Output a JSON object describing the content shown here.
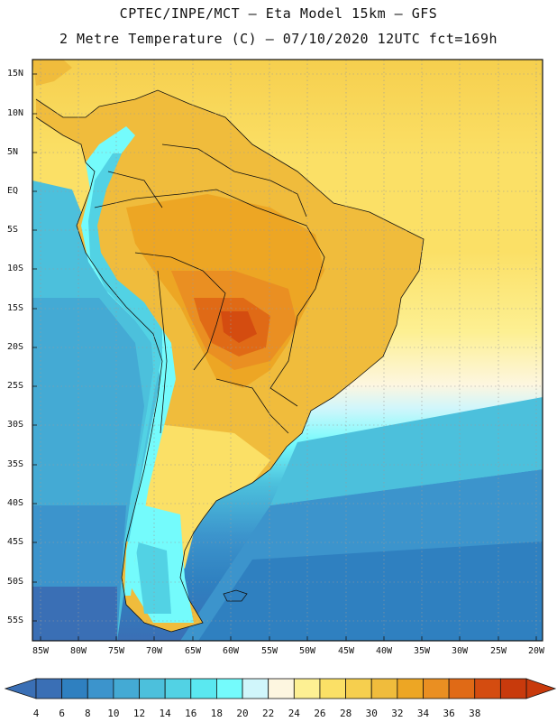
{
  "title_line1": "CPTEC/INPE/MCT –  Eta Model 15km – GFS",
  "title_line2": "2 Metre Temperature (C) – 07/10/2020 12UTC fct=169h",
  "lat_labels": [
    "15N",
    "10N",
    "5N",
    "EQ",
    "5S",
    "10S",
    "15S",
    "20S",
    "25S",
    "30S",
    "35S",
    "40S",
    "45S",
    "50S",
    "55S"
  ],
  "lon_labels": [
    "85W",
    "80W",
    "75W",
    "70W",
    "65W",
    "60W",
    "55W",
    "50W",
    "45W",
    "40W",
    "35W",
    "30W",
    "25W",
    "20W"
  ],
  "colorbar": {
    "labels": [
      "4",
      "6",
      "8",
      "10",
      "12",
      "14",
      "16",
      "18",
      "20",
      "22",
      "24",
      "26",
      "28",
      "30",
      "32",
      "34",
      "36",
      "38"
    ],
    "colors": [
      "#3a6fb5",
      "#2f80c0",
      "#3c94cc",
      "#44aad4",
      "#4cc0dc",
      "#52d2e4",
      "#5ae8f0",
      "#74fbfc",
      "#d0f6fb",
      "#fdf6e0",
      "#fdf093",
      "#fbe066",
      "#f6cf4e",
      "#f0bc3c",
      "#eda624",
      "#ea8f22",
      "#e06a16",
      "#d44c10",
      "#c83a0c"
    ],
    "min_arrow": "#3a6fb5",
    "max_arrow": "#c83a0c"
  }
}
